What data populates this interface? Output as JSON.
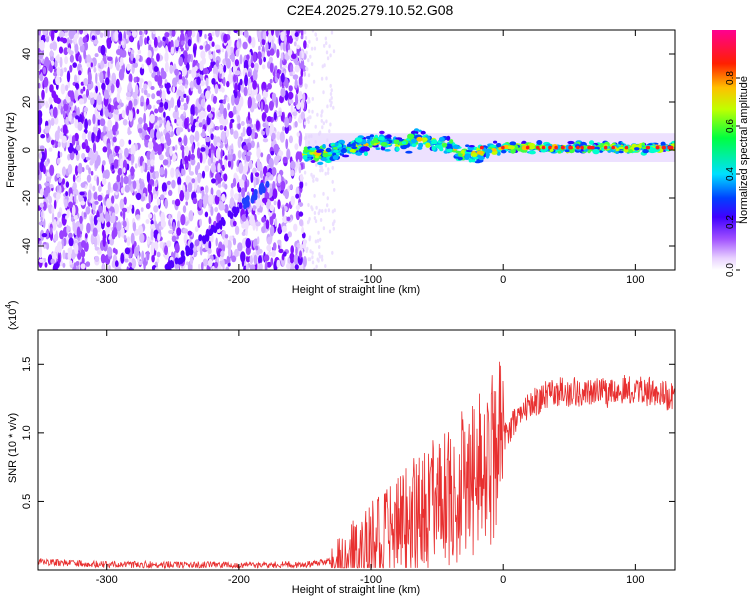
{
  "title": "C2E4.2025.279.10.52.G08",
  "chart_data": [
    {
      "type": "heatmap",
      "title": "C2E4.2025.279.10.52.G08",
      "xlabel": "Height of straight line (km)",
      "ylabel": "Frequency (Hz)",
      "xlim": [
        -352,
        130
      ],
      "ylim": [
        -50,
        50
      ],
      "xticks": [
        -300,
        -200,
        -100,
        0,
        100
      ],
      "yticks": [
        -40,
        -20,
        0,
        20,
        40
      ],
      "noise_region_x": [
        -352,
        -150
      ],
      "signal_track_x": [
        -150,
        130
      ],
      "signal_center_freq": 1,
      "diagonal_feature": {
        "x_start": -255,
        "y_start": -50,
        "x_end": -178,
        "y_end": -14
      },
      "colorbar": {
        "label": "Normalized spectral amplitude",
        "range": [
          0,
          1
        ],
        "ticks": [
          "0.0",
          "0.2",
          "0.4",
          "0.6",
          "0.8"
        ],
        "colors": [
          "#ffffff",
          "#bf7fff",
          "#7f00ff",
          "#0000ff",
          "#00ffff",
          "#00ff00",
          "#ffff00",
          "#ff8000",
          "#ff0000",
          "#ff00bf"
        ]
      }
    },
    {
      "type": "line",
      "xlabel": "Height of straight line (km)",
      "ylabel": "SNR (10 * v/v)",
      "multiplier_label": "(x10",
      "multiplier_exp": "4",
      "xlim": [
        -352,
        130
      ],
      "ylim": [
        0,
        17500
      ],
      "xticks": [
        -300,
        -200,
        -100,
        0,
        100
      ],
      "yticks": [
        5000,
        10000,
        15000
      ],
      "ytick_labels": [
        "0.5",
        "1.0",
        "1.5"
      ],
      "color": "#e83030",
      "series": [
        {
          "name": "SNR",
          "x": [
            -352,
            -300,
            -250,
            -200,
            -150,
            -120,
            -100,
            -80,
            -60,
            -40,
            -20,
            -10,
            0,
            10,
            20,
            30,
            40,
            60,
            80,
            92,
            100,
            110,
            120,
            130
          ],
          "values": [
            600,
            400,
            400,
            350,
            400,
            800,
            2000,
            3200,
            4300,
            5200,
            6800,
            7800,
            9500,
            11000,
            12000,
            12600,
            13000,
            13000,
            12900,
            13300,
            13200,
            13000,
            12800,
            12600
          ]
        }
      ]
    }
  ]
}
